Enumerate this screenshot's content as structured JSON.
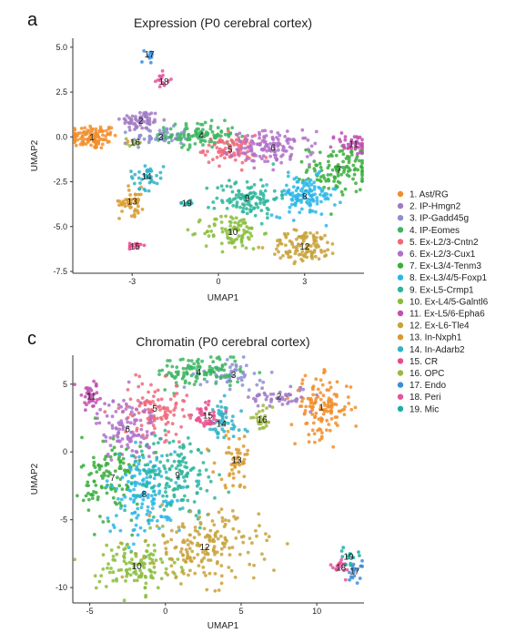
{
  "panels": {
    "a": {
      "letter": "a"
    },
    "c": {
      "letter": "c"
    }
  },
  "legend": {
    "items": [
      {
        "label": "1. Ast/RG",
        "color": "#F28E2B"
      },
      {
        "label": "2. IP-Hmgn2",
        "color": "#A17CC4"
      },
      {
        "label": "3. IP-Gadd45g",
        "color": "#8C8FD1"
      },
      {
        "label": "4. IP-Eomes",
        "color": "#3DB561"
      },
      {
        "label": "5. Ex-L2/3-Cntn2",
        "color": "#F0697A"
      },
      {
        "label": "6. Ex-L2/3-Cux1",
        "color": "#B071C9"
      },
      {
        "label": "7. Ex-L3/4-Tenm3",
        "color": "#3AAE3D"
      },
      {
        "label": "8. Ex-L3/4/5-Foxp1",
        "color": "#2CB6E8"
      },
      {
        "label": "9. Ex-L5-Crmp1",
        "color": "#2DB59A"
      },
      {
        "label": "10. Ex-L4/5-Galntl6",
        "color": "#89BD3D"
      },
      {
        "label": "11. Ex-L5/6-Epha6",
        "color": "#C24FB2"
      },
      {
        "label": "12. Ex-L6-Tle4",
        "color": "#C8A23B"
      },
      {
        "label": "13. In-Nxph1",
        "color": "#D89A2E"
      },
      {
        "label": "14. In-Adarb2",
        "color": "#33B2C7"
      },
      {
        "label": "15. CR",
        "color": "#E84C8E"
      },
      {
        "label": "16. OPC",
        "color": "#9BB844"
      },
      {
        "label": "17. Endo",
        "color": "#3C8DD9"
      },
      {
        "label": "18. Peri",
        "color": "#E3569C"
      },
      {
        "label": "19. Mic",
        "color": "#1AAFA8"
      }
    ]
  },
  "chart_data": [
    {
      "type": "scatter",
      "title": "Expression (P0 cerebral cortex)",
      "xlabel": "UMAP1",
      "ylabel": "UMAP2",
      "xlim": [
        -5,
        5
      ],
      "ylim": [
        -7.5,
        5.5
      ],
      "xticks": [
        -3,
        0,
        3
      ],
      "yticks": [
        5.0,
        2.5,
        0.0,
        -2.5,
        -5.0,
        -7.5
      ],
      "ytick_labels": [
        "5.0",
        "2.5",
        "0.0",
        "-2.5",
        "-5.0",
        "-7.5"
      ],
      "grid": false,
      "clusters": [
        {
          "id": 1,
          "x": -4.4,
          "y": 0.0
        },
        {
          "id": 2,
          "x": -2.7,
          "y": 0.9
        },
        {
          "id": 3,
          "x": -2.0,
          "y": 0.0
        },
        {
          "id": 4,
          "x": -0.6,
          "y": 0.1
        },
        {
          "id": 5,
          "x": 0.4,
          "y": -0.7
        },
        {
          "id": 6,
          "x": 1.9,
          "y": -0.6
        },
        {
          "id": 7,
          "x": 4.2,
          "y": -1.8
        },
        {
          "id": 8,
          "x": 3.0,
          "y": -3.3
        },
        {
          "id": 9,
          "x": 1.0,
          "y": -3.4
        },
        {
          "id": 10,
          "x": 0.5,
          "y": -5.3
        },
        {
          "id": 11,
          "x": 4.7,
          "y": -0.4
        },
        {
          "id": 12,
          "x": 3.0,
          "y": -6.1
        },
        {
          "id": 13,
          "x": -3.0,
          "y": -3.6
        },
        {
          "id": 14,
          "x": -2.5,
          "y": -2.2
        },
        {
          "id": 15,
          "x": -2.9,
          "y": -6.1
        },
        {
          "id": 16,
          "x": -2.9,
          "y": -0.3
        },
        {
          "id": 17,
          "x": -2.4,
          "y": 4.6
        },
        {
          "id": 18,
          "x": -1.9,
          "y": 3.1
        },
        {
          "id": 19,
          "x": -1.1,
          "y": -3.7
        }
      ]
    },
    {
      "type": "scatter",
      "title": "Chromatin (P0 cerebral cortex)",
      "xlabel": "UMAP1",
      "ylabel": "UMAP2",
      "xlim": [
        -6,
        13
      ],
      "ylim": [
        -11,
        7
      ],
      "xticks": [
        -5,
        0,
        5,
        10
      ],
      "yticks": [
        5,
        0,
        -5,
        -10
      ],
      "ytick_labels": [
        "5",
        "0",
        "-5",
        "-10"
      ],
      "grid": false,
      "clusters": [
        {
          "id": 1,
          "x": 10.3,
          "y": 3.3
        },
        {
          "id": 2,
          "x": 7.5,
          "y": 4.1
        },
        {
          "id": 3,
          "x": 4.5,
          "y": 5.7
        },
        {
          "id": 4,
          "x": 2.2,
          "y": 5.9
        },
        {
          "id": 5,
          "x": -0.7,
          "y": 3.2
        },
        {
          "id": 6,
          "x": -2.5,
          "y": 1.7
        },
        {
          "id": 7,
          "x": -3.5,
          "y": -1.9
        },
        {
          "id": 8,
          "x": -1.4,
          "y": -3.1
        },
        {
          "id": 9,
          "x": 0.8,
          "y": -1.7
        },
        {
          "id": 10,
          "x": -1.9,
          "y": -8.4
        },
        {
          "id": 11,
          "x": -4.9,
          "y": 4.1
        },
        {
          "id": 12,
          "x": 2.6,
          "y": -7.0
        },
        {
          "id": 13,
          "x": 4.7,
          "y": -0.6
        },
        {
          "id": 14,
          "x": 3.7,
          "y": 2.1
        },
        {
          "id": 15,
          "x": 2.8,
          "y": 2.7
        },
        {
          "id": 16,
          "x": 6.4,
          "y": 2.4
        },
        {
          "id": 17,
          "x": 12.5,
          "y": -8.8
        },
        {
          "id": 18,
          "x": 11.6,
          "y": -8.5
        },
        {
          "id": 19,
          "x": 12.1,
          "y": -7.7
        }
      ]
    }
  ]
}
